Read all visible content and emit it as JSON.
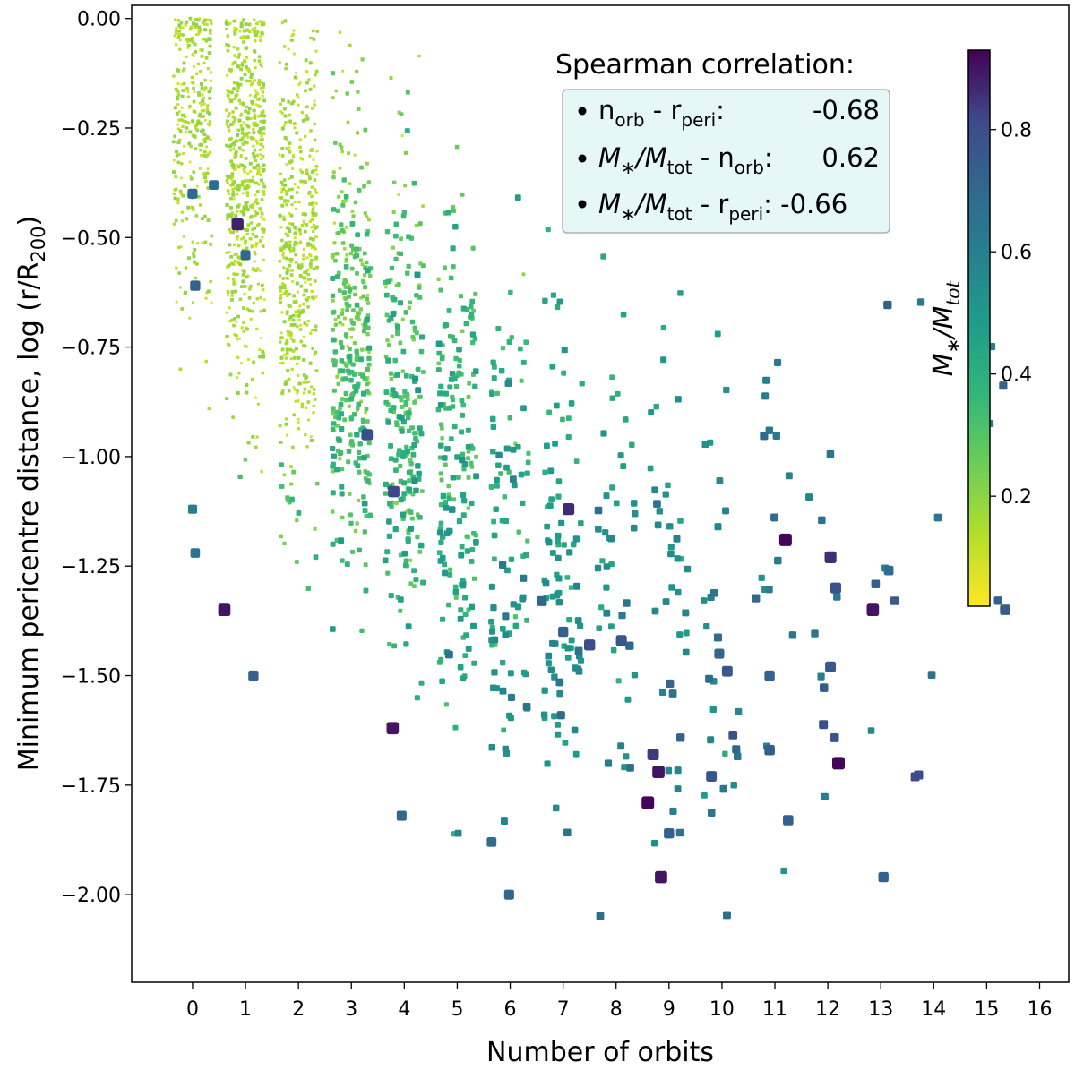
{
  "chart_data": {
    "type": "scatter",
    "xlabel": "Number of orbits",
    "ylabel": "Minimum pericentre distance, log (r/R",
    "ylabel_sub": "200",
    "ylabel_end": ")",
    "xlim": [
      -1.15,
      16.55
    ],
    "ylim": [
      -2.2,
      0.03
    ],
    "xticks": [
      "0",
      "1",
      "2",
      "3",
      "4",
      "5",
      "6",
      "7",
      "8",
      "9",
      "10",
      "11",
      "12",
      "13",
      "14",
      "15",
      "16"
    ],
    "yticks": [
      "0.00",
      "−0.25",
      "−0.50",
      "−0.75",
      "−1.00",
      "−1.25",
      "−1.50",
      "−1.75",
      "−2.00"
    ],
    "grid": false,
    "colorbar": {
      "label_main": "M",
      "label_star": "∗",
      "label_slash": "/M",
      "label_sub": "tot",
      "range": [
        0.02,
        0.93
      ],
      "ticks": [
        "0.2",
        "0.4",
        "0.6",
        "0.8"
      ],
      "colormap": "viridis_r"
    },
    "annotation": {
      "title": "Spearman correlation:",
      "rows": [
        {
          "a": "n",
          "a_sub": "orb",
          "b": " - r",
          "b_sub": "peri",
          "c": ":",
          "value": "-0.68"
        },
        {
          "a": "M",
          "a_sub": "",
          "b": "/M",
          "b_sub": "tot",
          "c": " - n",
          "c_sub": "orb",
          "value": "0.62"
        },
        {
          "a": "M",
          "a_sub": "",
          "b": "/M",
          "b_sub": "tot",
          "c": " - r",
          "c_sub": "peri",
          "value": "-0.66"
        }
      ],
      "box_color": "#e6f7f8"
    },
    "points_note": "",
    "highlight_points": [
      {
        "x": 0.0,
        "y": -0.4,
        "c": 0.7
      },
      {
        "x": 0.4,
        "y": -0.38,
        "c": 0.68
      },
      {
        "x": 0.05,
        "y": -0.61,
        "c": 0.72
      },
      {
        "x": 0.85,
        "y": -0.47,
        "c": 0.88
      },
      {
        "x": 1.0,
        "y": -0.54,
        "c": 0.7
      },
      {
        "x": 0.6,
        "y": -1.35,
        "c": 0.9
      },
      {
        "x": 1.15,
        "y": -1.5,
        "c": 0.72
      },
      {
        "x": 0.05,
        "y": -1.22,
        "c": 0.66
      },
      {
        "x": 0.0,
        "y": -1.12,
        "c": 0.62
      },
      {
        "x": 3.8,
        "y": -1.08,
        "c": 0.82
      },
      {
        "x": 3.3,
        "y": -0.95,
        "c": 0.8
      },
      {
        "x": 3.78,
        "y": -1.62,
        "c": 0.9
      },
      {
        "x": 3.95,
        "y": -1.82,
        "c": 0.7
      },
      {
        "x": 5.65,
        "y": -1.88,
        "c": 0.68
      },
      {
        "x": 5.98,
        "y": -2.0,
        "c": 0.7
      },
      {
        "x": 7.1,
        "y": -1.12,
        "c": 0.86
      },
      {
        "x": 7.5,
        "y": -1.43,
        "c": 0.8
      },
      {
        "x": 8.1,
        "y": -1.42,
        "c": 0.78
      },
      {
        "x": 8.6,
        "y": -1.79,
        "c": 0.92
      },
      {
        "x": 8.8,
        "y": -1.72,
        "c": 0.9
      },
      {
        "x": 8.85,
        "y": -1.96,
        "c": 0.9
      },
      {
        "x": 8.7,
        "y": -1.68,
        "c": 0.84
      },
      {
        "x": 11.2,
        "y": -1.19,
        "c": 0.92
      },
      {
        "x": 12.05,
        "y": -1.23,
        "c": 0.86
      },
      {
        "x": 12.15,
        "y": -1.3,
        "c": 0.78
      },
      {
        "x": 12.2,
        "y": -1.7,
        "c": 0.92
      },
      {
        "x": 12.85,
        "y": -1.35,
        "c": 0.9
      },
      {
        "x": 15.35,
        "y": -1.35,
        "c": 0.74
      },
      {
        "x": 13.15,
        "y": -1.26,
        "c": 0.68
      },
      {
        "x": 13.05,
        "y": -1.96,
        "c": 0.72
      },
      {
        "x": 11.25,
        "y": -1.83,
        "c": 0.74
      },
      {
        "x": 10.9,
        "y": -1.67,
        "c": 0.74
      },
      {
        "x": 9.0,
        "y": -1.86,
        "c": 0.72
      },
      {
        "x": 9.8,
        "y": -1.73,
        "c": 0.76
      },
      {
        "x": 10.1,
        "y": -1.49,
        "c": 0.76
      },
      {
        "x": 12.05,
        "y": -1.48,
        "c": 0.76
      },
      {
        "x": 6.6,
        "y": -1.33,
        "c": 0.7
      },
      {
        "x": 7.0,
        "y": -1.4,
        "c": 0.72
      },
      {
        "x": 10.9,
        "y": -1.5,
        "c": 0.72
      },
      {
        "x": 9.95,
        "y": -1.45,
        "c": 0.7
      }
    ]
  }
}
